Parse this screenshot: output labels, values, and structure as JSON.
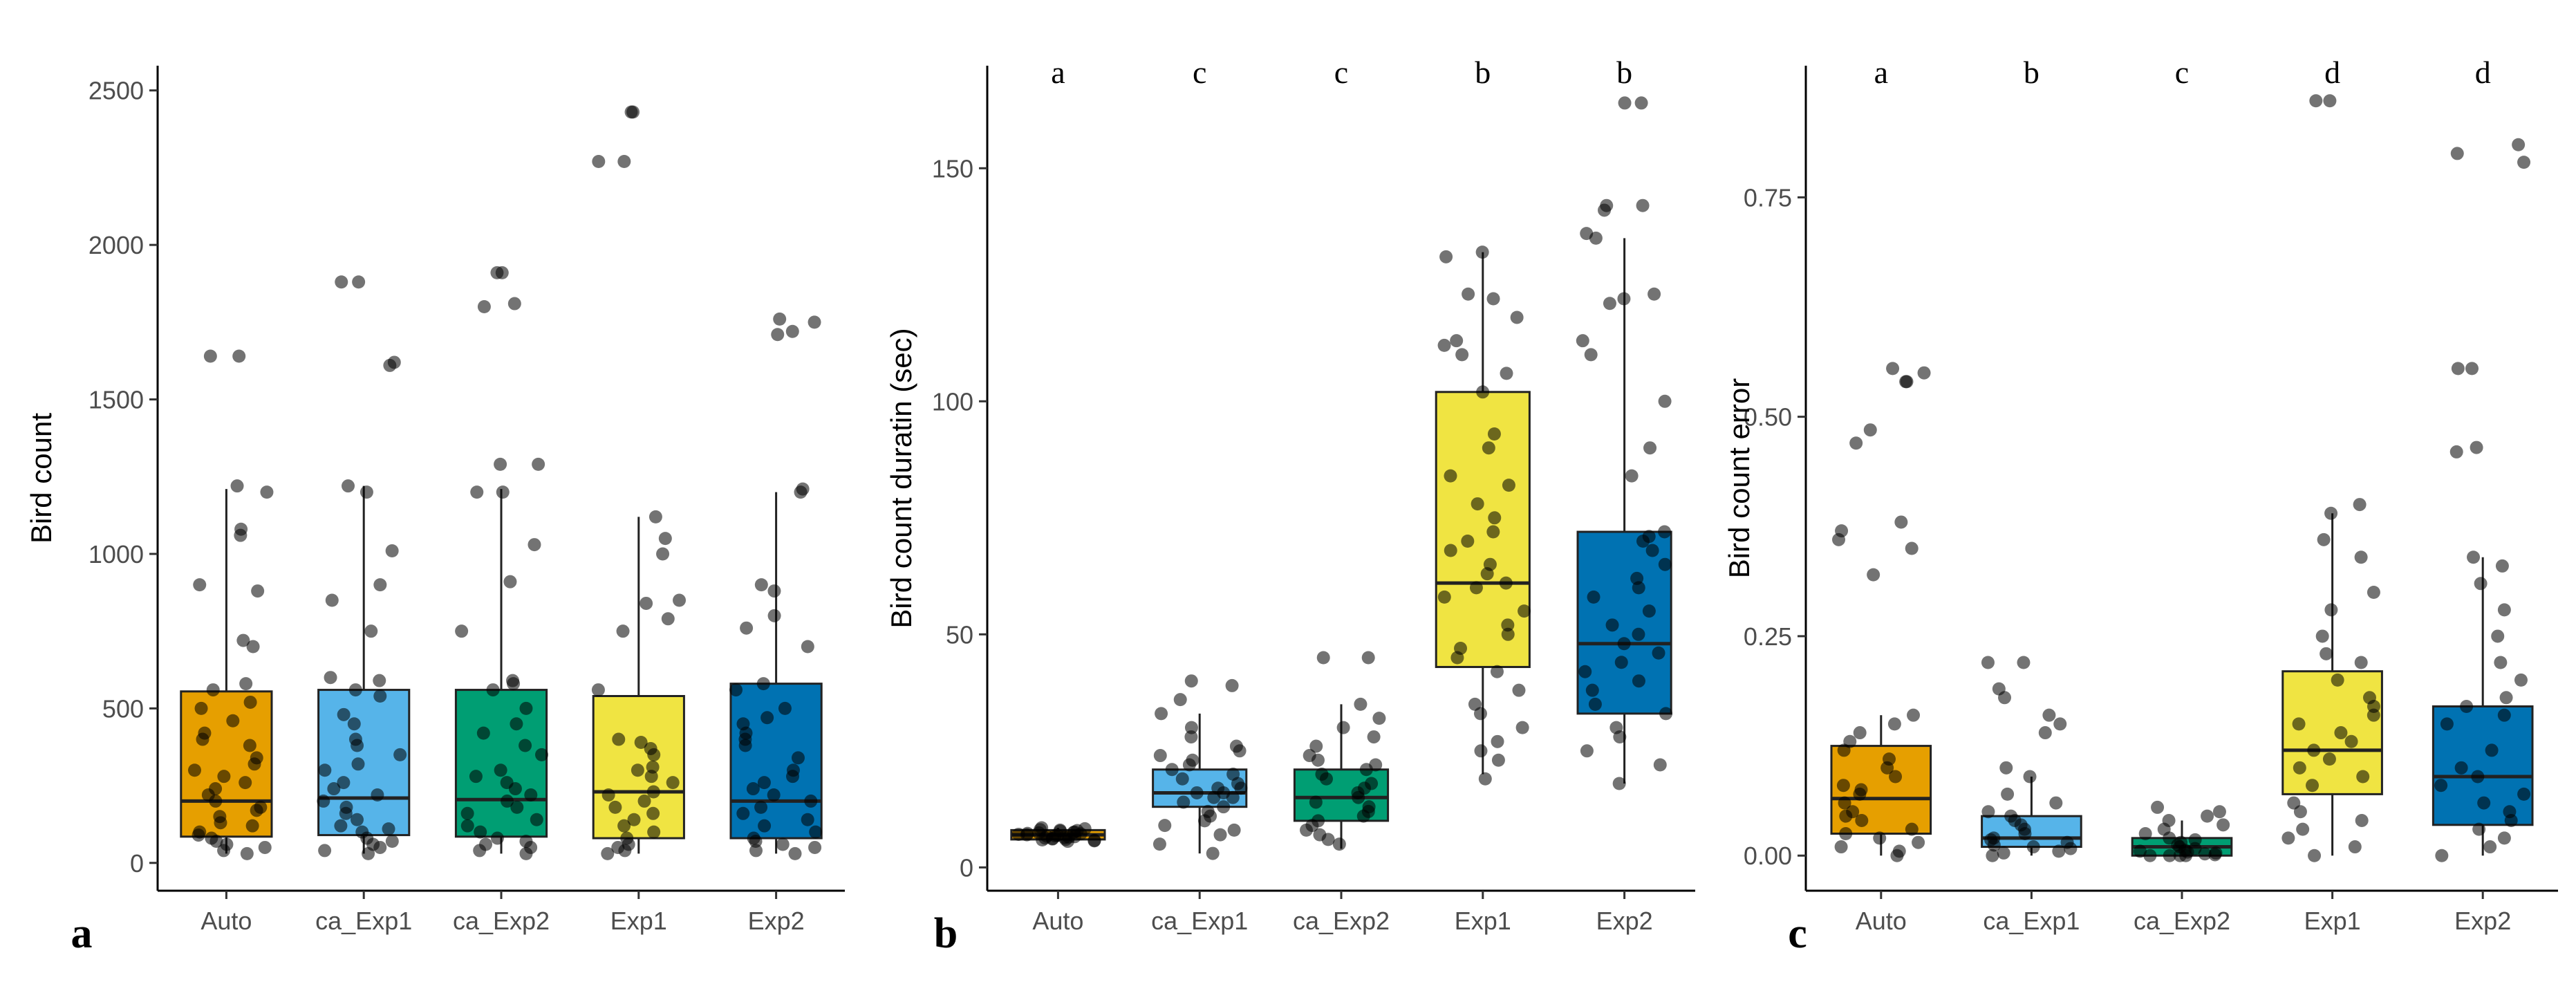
{
  "figure": {
    "panels": [
      "a",
      "b",
      "c"
    ]
  },
  "colors": {
    "Auto": "#E69F00",
    "ca_Exp1": "#56B4E9",
    "ca_Exp2": "#009E73",
    "Exp1": "#F0E442",
    "Exp2": "#0072B2"
  },
  "chart_data": [
    {
      "type": "box",
      "panel_label": "a",
      "title": "",
      "xlabel": "",
      "ylabel": "Bird count",
      "categories": [
        "Auto",
        "ca_Exp1",
        "ca_Exp2",
        "Exp1",
        "Exp2"
      ],
      "yticks": [
        0,
        500,
        1000,
        1500,
        2000,
        2500
      ],
      "ylim": [
        -90,
        2580
      ],
      "significance_letters": [],
      "boxes": [
        {
          "q1": 85,
          "median": 200,
          "q3": 555,
          "whisker_low": 30,
          "whisker_high": 1210
        },
        {
          "q1": 90,
          "median": 210,
          "q3": 560,
          "whisker_low": 30,
          "whisker_high": 1220
        },
        {
          "q1": 85,
          "median": 205,
          "q3": 560,
          "whisker_low": 30,
          "whisker_high": 1210
        },
        {
          "q1": 80,
          "median": 230,
          "q3": 540,
          "whisker_low": 30,
          "whisker_high": 1120
        },
        {
          "q1": 80,
          "median": 200,
          "q3": 580,
          "whisker_low": 30,
          "whisker_high": 1200
        }
      ],
      "points": [
        [
          1640,
          1640,
          1220,
          1200,
          1080,
          1060,
          900,
          880,
          720,
          700,
          580,
          560,
          520,
          500,
          460,
          420,
          400,
          380,
          340,
          320,
          300,
          280,
          260,
          240,
          220,
          200,
          180,
          170,
          150,
          130,
          120,
          100,
          90,
          80,
          70,
          60,
          50,
          40,
          30
        ],
        [
          1880,
          1880,
          1620,
          1610,
          1220,
          1200,
          1010,
          900,
          850,
          750,
          600,
          590,
          560,
          540,
          480,
          450,
          400,
          380,
          350,
          320,
          300,
          260,
          240,
          220,
          200,
          180,
          160,
          140,
          120,
          110,
          100,
          80,
          70,
          60,
          50,
          40,
          30
        ],
        [
          1910,
          1910,
          1810,
          1800,
          1290,
          1290,
          1200,
          1200,
          1030,
          910,
          750,
          590,
          580,
          560,
          500,
          450,
          420,
          380,
          350,
          300,
          280,
          260,
          240,
          220,
          200,
          180,
          160,
          140,
          120,
          100,
          80,
          70,
          60,
          50,
          40,
          30
        ],
        [
          2430,
          2430,
          2270,
          2270,
          1120,
          1050,
          1000,
          850,
          840,
          790,
          750,
          560,
          400,
          390,
          370,
          350,
          310,
          300,
          280,
          260,
          230,
          220,
          200,
          180,
          160,
          140,
          120,
          100,
          80,
          60,
          50,
          40,
          30
        ],
        [
          1760,
          1750,
          1720,
          1710,
          1210,
          1200,
          900,
          880,
          800,
          760,
          700,
          580,
          560,
          500,
          470,
          450,
          420,
          400,
          380,
          340,
          300,
          280,
          260,
          240,
          220,
          200,
          180,
          160,
          140,
          120,
          100,
          80,
          70,
          60,
          50,
          40,
          30
        ]
      ]
    },
    {
      "type": "box",
      "panel_label": "b",
      "title": "",
      "xlabel": "",
      "ylabel": "Bird count duratin (sec)",
      "categories": [
        "Auto",
        "ca_Exp1",
        "ca_Exp2",
        "Exp1",
        "Exp2"
      ],
      "yticks": [
        0,
        50,
        100,
        150
      ],
      "ylim": [
        -5,
        172
      ],
      "significance_letters": [
        "a",
        "c",
        "c",
        "b",
        "b"
      ],
      "boxes": [
        {
          "q1": 6,
          "median": 7,
          "q3": 8,
          "whisker_low": 5.5,
          "whisker_high": 8.5
        },
        {
          "q1": 13,
          "median": 16,
          "q3": 21,
          "whisker_low": 3,
          "whisker_high": 33
        },
        {
          "q1": 10,
          "median": 15,
          "q3": 21,
          "whisker_low": 4,
          "whisker_high": 35
        },
        {
          "q1": 43,
          "median": 61,
          "q3": 102,
          "whisker_low": 20,
          "whisker_high": 132
        },
        {
          "q1": 33,
          "median": 48,
          "q3": 72,
          "whisker_low": 18,
          "whisker_high": 135
        }
      ],
      "points": [
        [
          8.5,
          8.3,
          8.1,
          8.0,
          7.9,
          7.8,
          7.6,
          7.5,
          7.4,
          7.3,
          7.2,
          7.1,
          7.0,
          6.9,
          6.8,
          6.7,
          6.6,
          6.5,
          6.4,
          6.3,
          6.2,
          6.1,
          6.0,
          5.9,
          5.8,
          5.7,
          5.6
        ],
        [
          40,
          39,
          36,
          33,
          30,
          28,
          26,
          25,
          24,
          23,
          22,
          21,
          20,
          19,
          18,
          17,
          17,
          16,
          16,
          15,
          15,
          14,
          13,
          12,
          11,
          10,
          9,
          8,
          7,
          5,
          3
        ],
        [
          45,
          45,
          35,
          32,
          30,
          28,
          26,
          24,
          23,
          22,
          21,
          20,
          19,
          18,
          17,
          16,
          15,
          14,
          13,
          12,
          11,
          10,
          9,
          8,
          7,
          6,
          5
        ],
        [
          132,
          131,
          123,
          122,
          118,
          113,
          112,
          110,
          106,
          102,
          93,
          90,
          84,
          82,
          78,
          75,
          72,
          70,
          68,
          65,
          63,
          61,
          60,
          58,
          55,
          52,
          50,
          47,
          45,
          42,
          38,
          35,
          33,
          30,
          27,
          25,
          23,
          19
        ],
        [
          164,
          164,
          142,
          142,
          141,
          136,
          135,
          123,
          122,
          121,
          113,
          110,
          100,
          90,
          84,
          72,
          71,
          70,
          68,
          65,
          62,
          60,
          58,
          55,
          52,
          50,
          48,
          46,
          44,
          42,
          40,
          38,
          35,
          33,
          30,
          28,
          25,
          22,
          18
        ]
      ]
    },
    {
      "type": "box",
      "panel_label": "c",
      "title": "",
      "xlabel": "",
      "ylabel": "Bird count error",
      "categories": [
        "Auto",
        "ca_Exp1",
        "ca_Exp2",
        "Exp1",
        "Exp2"
      ],
      "yticks": [
        0.0,
        0.25,
        0.5,
        0.75
      ],
      "ylim": [
        -0.04,
        0.9
      ],
      "significance_letters": [
        "a",
        "b",
        "c",
        "d",
        "d"
      ],
      "boxes": [
        {
          "q1": 0.025,
          "median": 0.065,
          "q3": 0.125,
          "whisker_low": 0.0,
          "whisker_high": 0.16
        },
        {
          "q1": 0.01,
          "median": 0.02,
          "q3": 0.045,
          "whisker_low": 0.0,
          "whisker_high": 0.09
        },
        {
          "q1": 0.0,
          "median": 0.01,
          "q3": 0.02,
          "whisker_low": 0.0,
          "whisker_high": 0.04
        },
        {
          "q1": 0.07,
          "median": 0.12,
          "q3": 0.21,
          "whisker_low": 0.0,
          "whisker_high": 0.39
        },
        {
          "q1": 0.035,
          "median": 0.09,
          "q3": 0.17,
          "whisker_low": 0.0,
          "whisker_high": 0.34
        }
      ],
      "points": [
        [
          0.555,
          0.55,
          0.54,
          0.54,
          0.485,
          0.47,
          0.38,
          0.37,
          0.36,
          0.35,
          0.32,
          0.16,
          0.15,
          0.14,
          0.13,
          0.12,
          0.11,
          0.1,
          0.09,
          0.08,
          0.075,
          0.07,
          0.06,
          0.05,
          0.045,
          0.04,
          0.03,
          0.025,
          0.02,
          0.015,
          0.01,
          0.005,
          0.0
        ],
        [
          0.22,
          0.22,
          0.19,
          0.18,
          0.16,
          0.15,
          0.14,
          0.1,
          0.09,
          0.07,
          0.06,
          0.05,
          0.045,
          0.04,
          0.035,
          0.03,
          0.025,
          0.02,
          0.018,
          0.015,
          0.012,
          0.01,
          0.008,
          0.005,
          0.003,
          0.0
        ],
        [
          0.055,
          0.05,
          0.045,
          0.04,
          0.035,
          0.03,
          0.025,
          0.02,
          0.018,
          0.015,
          0.012,
          0.01,
          0.008,
          0.006,
          0.005,
          0.004,
          0.003,
          0.002,
          0.001,
          0.0,
          0.0,
          0.0,
          0.0
        ],
        [
          0.86,
          0.86,
          0.4,
          0.39,
          0.36,
          0.34,
          0.3,
          0.28,
          0.25,
          0.23,
          0.22,
          0.2,
          0.18,
          0.17,
          0.16,
          0.15,
          0.14,
          0.13,
          0.12,
          0.11,
          0.1,
          0.09,
          0.08,
          0.06,
          0.05,
          0.04,
          0.03,
          0.02,
          0.01,
          0.0
        ],
        [
          0.81,
          0.8,
          0.79,
          0.555,
          0.555,
          0.465,
          0.46,
          0.34,
          0.33,
          0.31,
          0.28,
          0.25,
          0.22,
          0.2,
          0.18,
          0.17,
          0.16,
          0.15,
          0.12,
          0.1,
          0.09,
          0.08,
          0.07,
          0.06,
          0.05,
          0.04,
          0.03,
          0.02,
          0.01,
          0.0
        ]
      ]
    }
  ]
}
